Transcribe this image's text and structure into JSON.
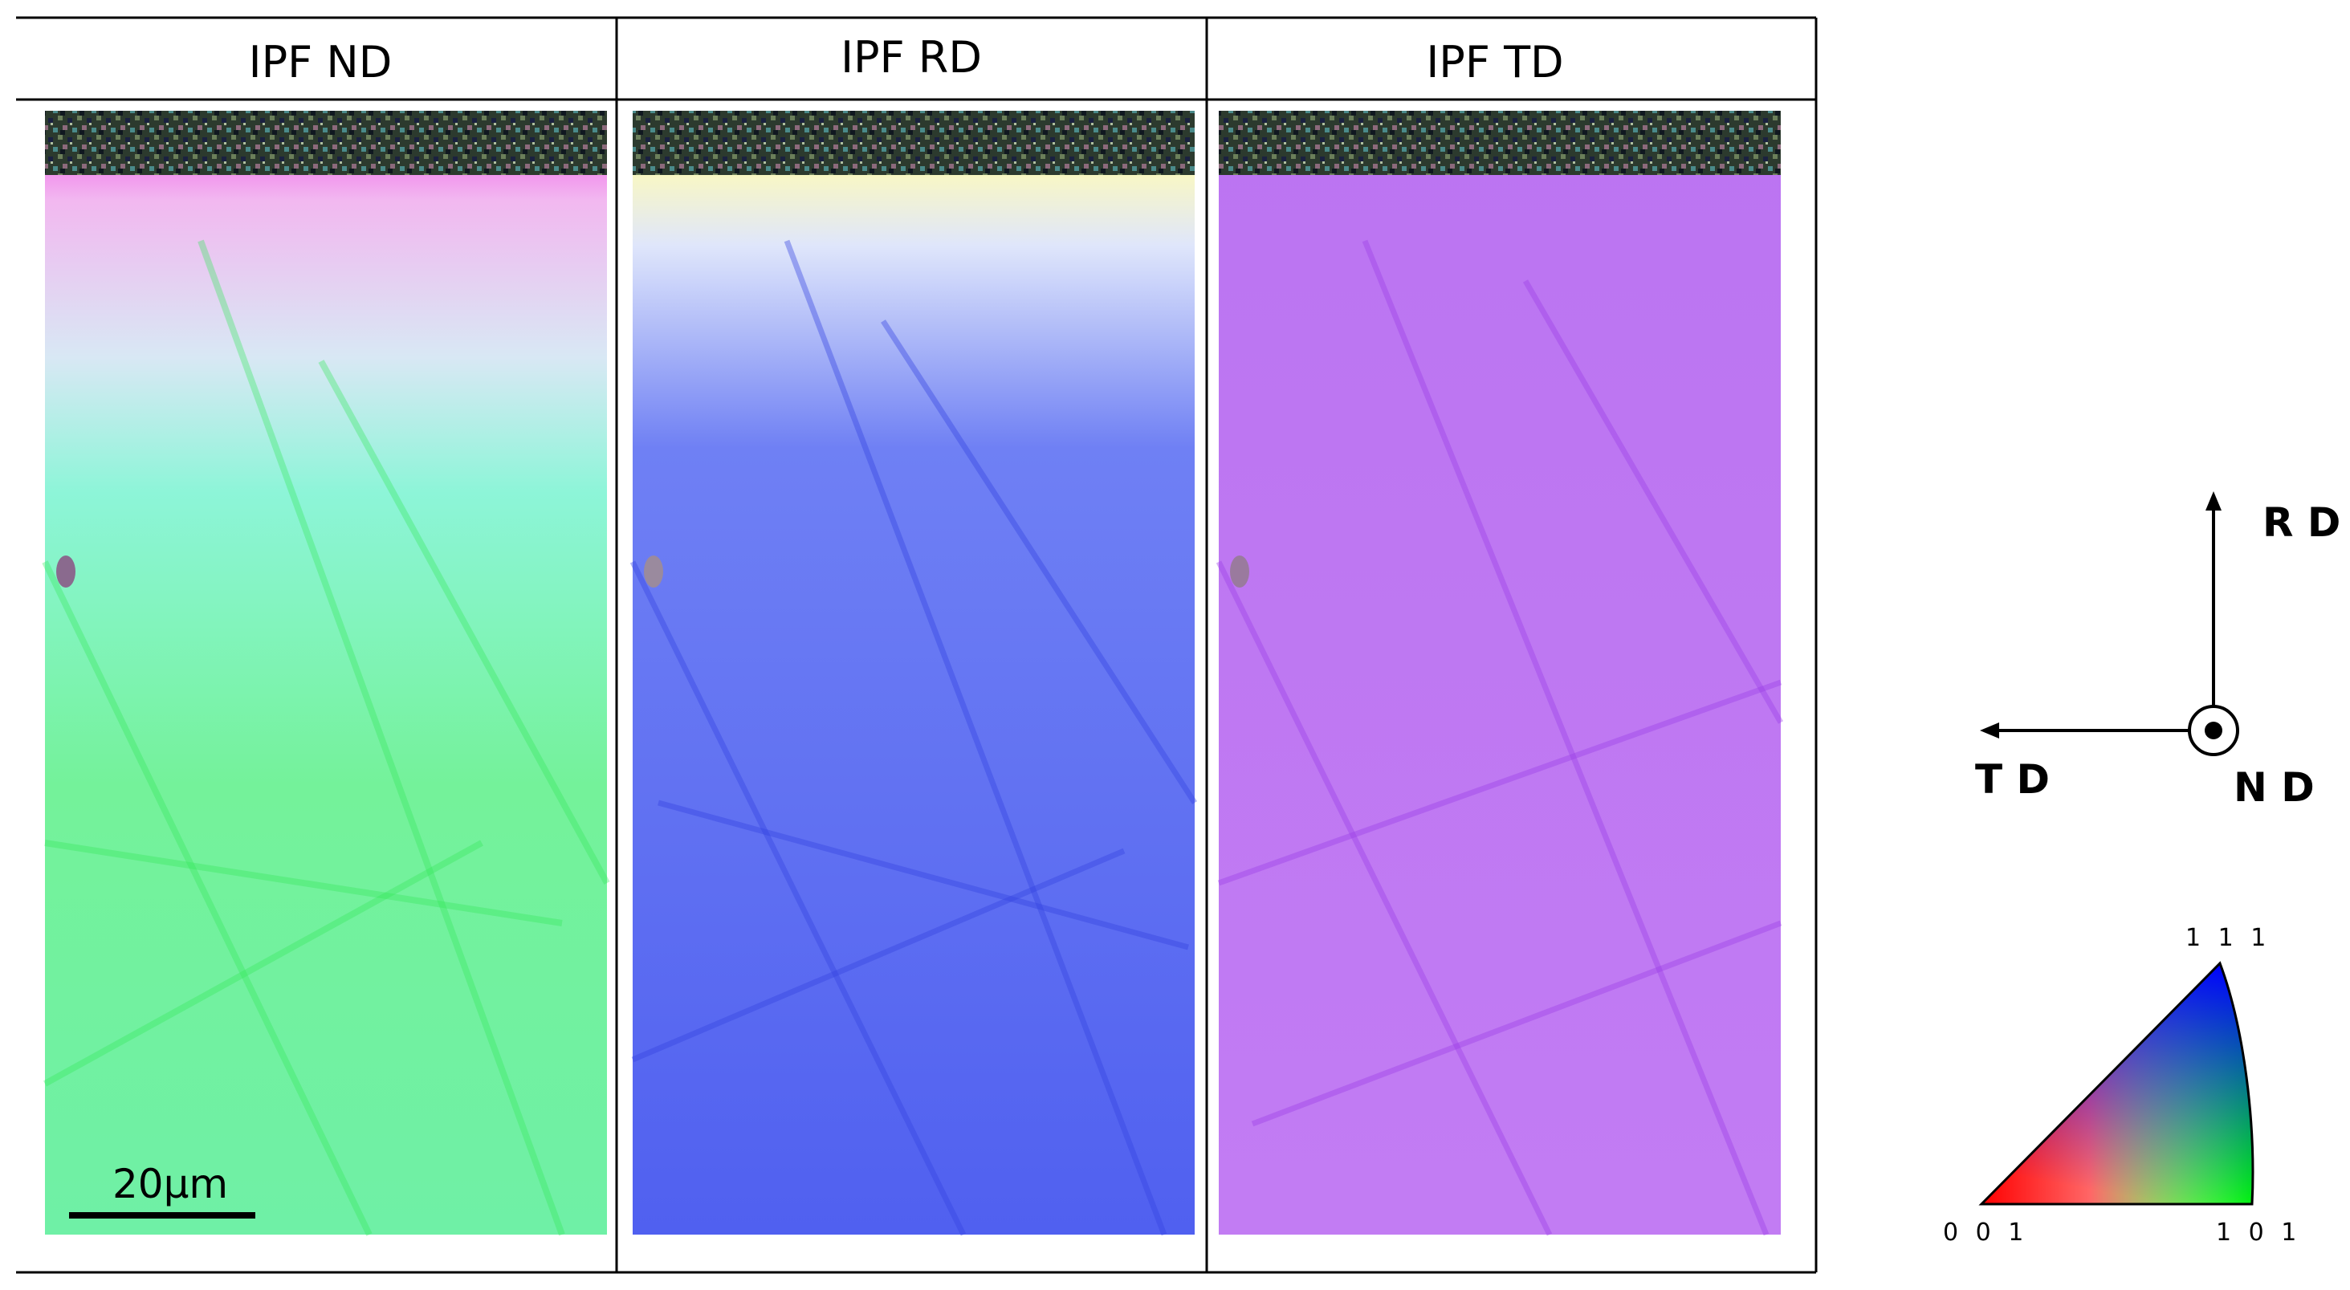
{
  "panels": [
    {
      "title": "IPF ND",
      "fill": "#6cf08c",
      "top_color": "#f048ea",
      "accent": "#33e858"
    },
    {
      "title": "IPF RD",
      "fill": "#5266f2",
      "top_color": "#f2ee2a",
      "accent": "#3444e0"
    },
    {
      "title": "IPF TD",
      "fill": "#c47cf2",
      "top_color": "#a04cf0",
      "accent": "#9a3fe6"
    }
  ],
  "scale_bar": {
    "label": "20μm"
  },
  "axes": {
    "rd": "R D",
    "td": "T D",
    "nd": "N D"
  },
  "triangle": {
    "top": "1 1 1",
    "left": "0 0 1",
    "right": "1 0 1",
    "colors": {
      "c001": "#ff0000",
      "c101": "#00ff00",
      "c111": "#0000ff"
    }
  }
}
